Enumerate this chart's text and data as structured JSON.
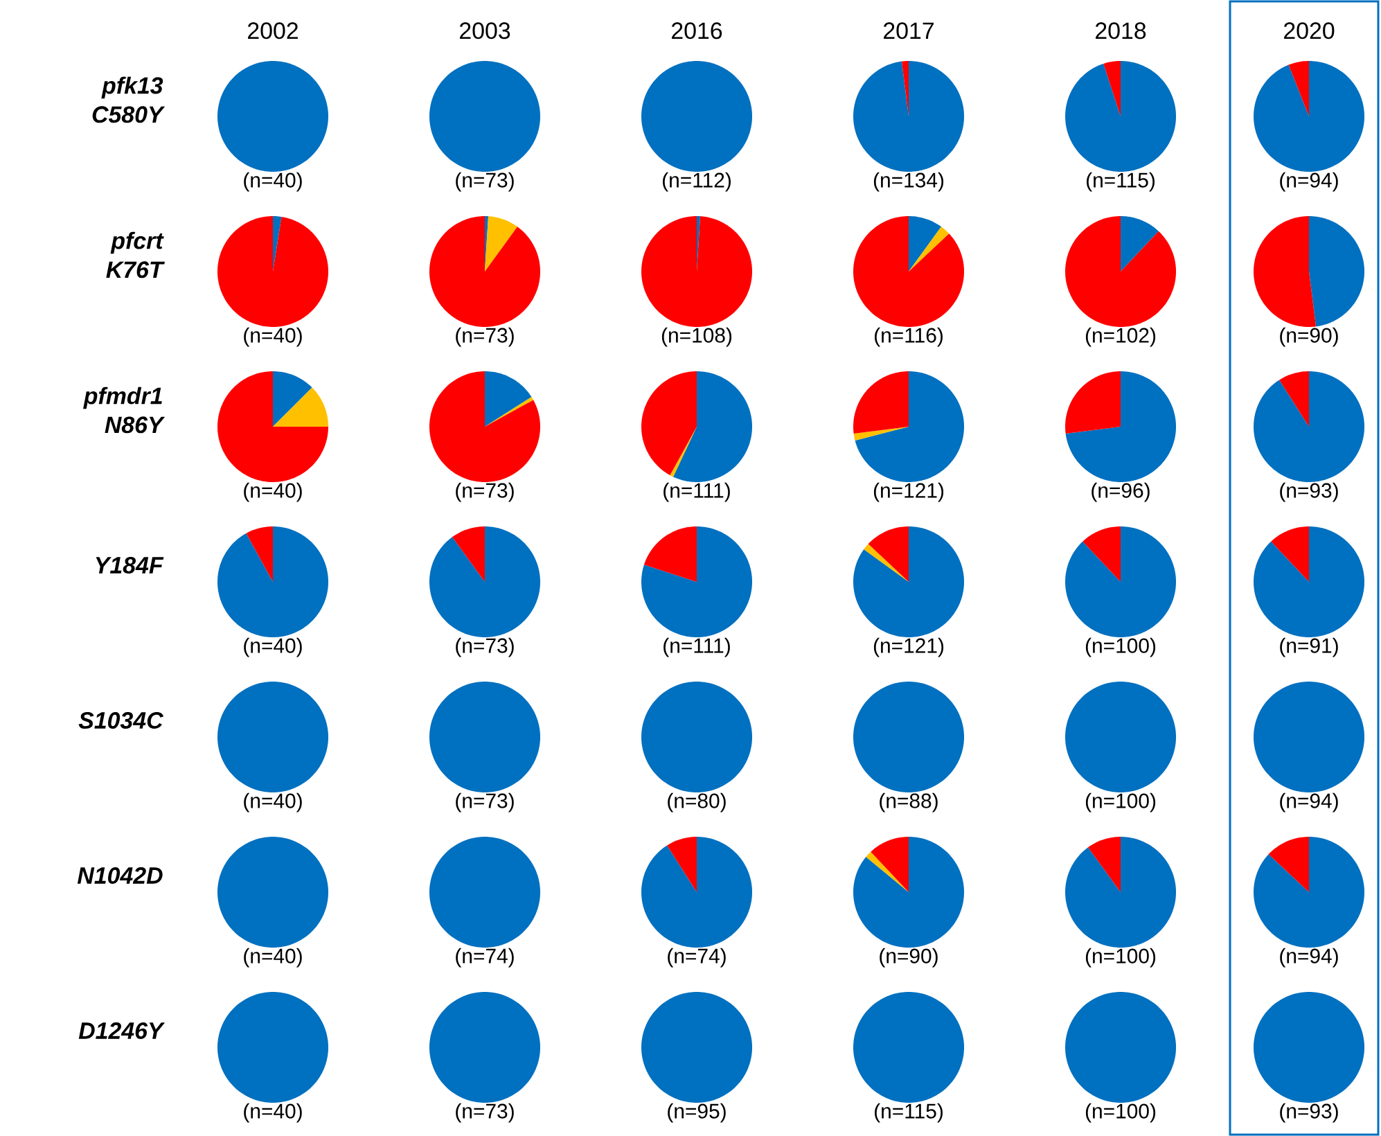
{
  "chart_data": [
    {
      "type": "other",
      "annotations": [
        "pfk13 C580Y",
        "pfcrt K76T",
        "pfmdr1 N86Y",
        "Y184F",
        "S1034C",
        "N1042D",
        "D1246Y"
      ]
    },
    {
      "type": "pie",
      "title": "2002",
      "categories": [
        null,
        null,
        null
      ],
      "colors": [
        "#0070c0",
        "#ffc000",
        "#ff0000"
      ],
      "series": [
        {
          "values": [
            100,
            0,
            0
          ]
        },
        {
          "values": [
            2.5,
            0,
            97.5
          ]
        },
        {
          "values": [
            12.5,
            12.5,
            75
          ]
        },
        {
          "values": [
            92,
            0,
            8
          ]
        },
        {
          "values": [
            100,
            0,
            0
          ]
        },
        {
          "values": [
            100,
            0,
            0
          ]
        },
        {
          "values": [
            100,
            0,
            0
          ]
        }
      ],
      "annotations": [
        "(n=40)",
        "(n=40)",
        "(n=40)",
        "(n=40)",
        "(n=40)",
        "(n=40)",
        "(n=40)"
      ]
    },
    {
      "type": "pie",
      "title": "2003",
      "categories": [
        null,
        null,
        null
      ],
      "colors": [
        "#0070c0",
        "#ffc000",
        "#ff0000"
      ],
      "series": [
        {
          "values": [
            100,
            0,
            0
          ]
        },
        {
          "values": [
            1,
            9,
            90
          ]
        },
        {
          "values": [
            16,
            1,
            83
          ]
        },
        {
          "values": [
            90,
            0,
            10
          ]
        },
        {
          "values": [
            100,
            0,
            0
          ]
        },
        {
          "values": [
            100,
            0,
            0
          ]
        },
        {
          "values": [
            100,
            0,
            0
          ]
        }
      ],
      "annotations": [
        "(n=73)",
        "(n=73)",
        "(n=73)",
        "(n=73)",
        "(n=73)",
        "(n=74)",
        "(n=73)"
      ]
    },
    {
      "type": "pie",
      "title": "2016",
      "categories": [
        null,
        null,
        null
      ],
      "colors": [
        "#0070c0",
        "#ffc000",
        "#ff0000"
      ],
      "series": [
        {
          "values": [
            100,
            0,
            0
          ]
        },
        {
          "values": [
            1,
            0,
            99
          ]
        },
        {
          "values": [
            57,
            1,
            42
          ]
        },
        {
          "values": [
            80,
            0,
            20
          ]
        },
        {
          "values": [
            100,
            0,
            0
          ]
        },
        {
          "values": [
            91,
            0,
            9
          ]
        },
        {
          "values": [
            100,
            0,
            0
          ]
        }
      ],
      "annotations": [
        "(n=112)",
        "(n=108)",
        "(n=111)",
        "(n=111)",
        "(n=80)",
        "(n=74)",
        "(n=95)"
      ]
    },
    {
      "type": "pie",
      "title": "2017",
      "categories": [
        null,
        null,
        null
      ],
      "colors": [
        "#0070c0",
        "#ffc000",
        "#ff0000"
      ],
      "series": [
        {
          "values": [
            98,
            0,
            2
          ]
        },
        {
          "values": [
            10,
            3,
            87
          ]
        },
        {
          "values": [
            71,
            2,
            27
          ]
        },
        {
          "values": [
            85,
            2,
            13
          ]
        },
        {
          "values": [
            100,
            0,
            0
          ]
        },
        {
          "values": [
            86,
            2,
            12
          ]
        },
        {
          "values": [
            100,
            0,
            0
          ]
        }
      ],
      "annotations": [
        "(n=134)",
        "(n=116)",
        "(n=121)",
        "(n=121)",
        "(n=88)",
        "(n=90)",
        "(n=115)"
      ]
    },
    {
      "type": "pie",
      "title": "2018",
      "categories": [
        null,
        null,
        null
      ],
      "colors": [
        "#0070c0",
        "#ffc000",
        "#ff0000"
      ],
      "series": [
        {
          "values": [
            95,
            0,
            5
          ]
        },
        {
          "values": [
            12,
            0,
            88
          ]
        },
        {
          "values": [
            73,
            0,
            27
          ]
        },
        {
          "values": [
            88,
            0,
            12
          ]
        },
        {
          "values": [
            100,
            0,
            0
          ]
        },
        {
          "values": [
            90,
            0,
            10
          ]
        },
        {
          "values": [
            100,
            0,
            0
          ]
        }
      ],
      "annotations": [
        "(n=115)",
        "(n=102)",
        "(n=96)",
        "(n=100)",
        "(n=100)",
        "(n=100)",
        "(n=100)"
      ]
    },
    {
      "type": "pie",
      "title": "2020",
      "categories": [
        null,
        null,
        null
      ],
      "colors": [
        "#0070c0",
        "#ffc000",
        "#ff0000"
      ],
      "series": [
        {
          "values": [
            94,
            0,
            6
          ]
        },
        {
          "values": [
            48,
            0,
            52
          ]
        },
        {
          "values": [
            91,
            0,
            9
          ]
        },
        {
          "values": [
            88,
            0,
            12
          ]
        },
        {
          "values": [
            100,
            0,
            0
          ]
        },
        {
          "values": [
            87,
            0,
            13
          ]
        },
        {
          "values": [
            100,
            0,
            0
          ]
        }
      ],
      "annotations": [
        "(n=94)",
        "(n=90)",
        "(n=93)",
        "(n=91)",
        "(n=94)",
        "(n=94)",
        "(n=93)"
      ]
    }
  ]
}
